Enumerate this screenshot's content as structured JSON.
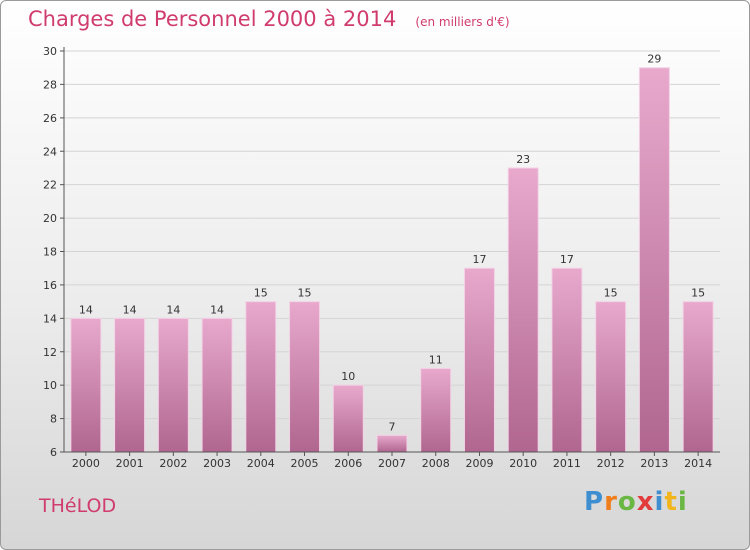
{
  "chart_data": {
    "type": "bar",
    "title": "Charges de Personnel 2000 à 2014",
    "subtitle": "(en milliers d'€)",
    "categories": [
      "2000",
      "2001",
      "2002",
      "2003",
      "2004",
      "2005",
      "2006",
      "2007",
      "2008",
      "2009",
      "2010",
      "2011",
      "2012",
      "2013",
      "2014"
    ],
    "values": [
      14,
      14,
      14,
      14,
      15,
      15,
      10,
      7,
      11,
      17,
      23,
      17,
      15,
      29,
      15
    ],
    "ylim": [
      6,
      30
    ],
    "yticks": [
      6,
      8,
      10,
      12,
      14,
      16,
      18,
      20,
      22,
      24,
      26,
      28,
      30
    ],
    "grid": true,
    "legend": "none",
    "colors": {
      "bar_top": "#e8a9cd",
      "bar_bottom": "#b0668f",
      "title": "#d03c6e"
    }
  },
  "footer": {
    "town": "THéLOD",
    "logo": "Proxiti"
  }
}
